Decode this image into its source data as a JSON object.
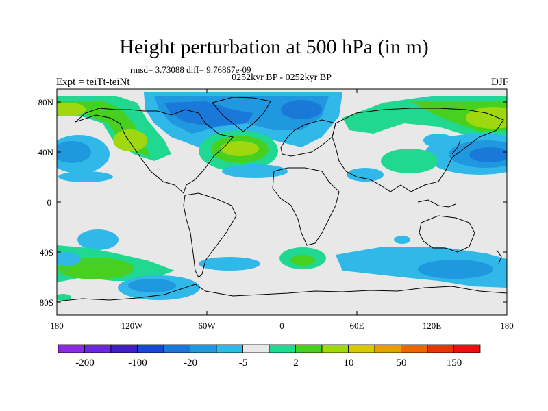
{
  "title": "Height perturbation at 500 hPa (in m)",
  "subtitle_stats": "rmsd= 3.73088  diff= 9.76867e-09",
  "period": "0252kyr BP - 0252kyr BP",
  "expt_label": "Expt = teiTt-teiNt",
  "season": "DJF",
  "lat_labels": [
    "80N",
    "40N",
    "0",
    "40S",
    "80S"
  ],
  "lon_labels": [
    "180",
    "120W",
    "60W",
    "0",
    "60E",
    "120E",
    "180"
  ],
  "colorbar": {
    "colors": [
      "#8a2be2",
      "#6a28d8",
      "#4020c0",
      "#1848d0",
      "#1a78d8",
      "#2098e0",
      "#30b8e8",
      "#e8e8e8",
      "#20d890",
      "#48d020",
      "#a0d810",
      "#d8c800",
      "#e8a000",
      "#e86800",
      "#e03800",
      "#e81010"
    ],
    "labels": [
      "-200",
      "-100",
      "-20",
      "-5",
      "2",
      "10",
      "50",
      "150"
    ]
  },
  "colors": {
    "land_fill": "#e8e8e8",
    "coast": "#000000"
  }
}
